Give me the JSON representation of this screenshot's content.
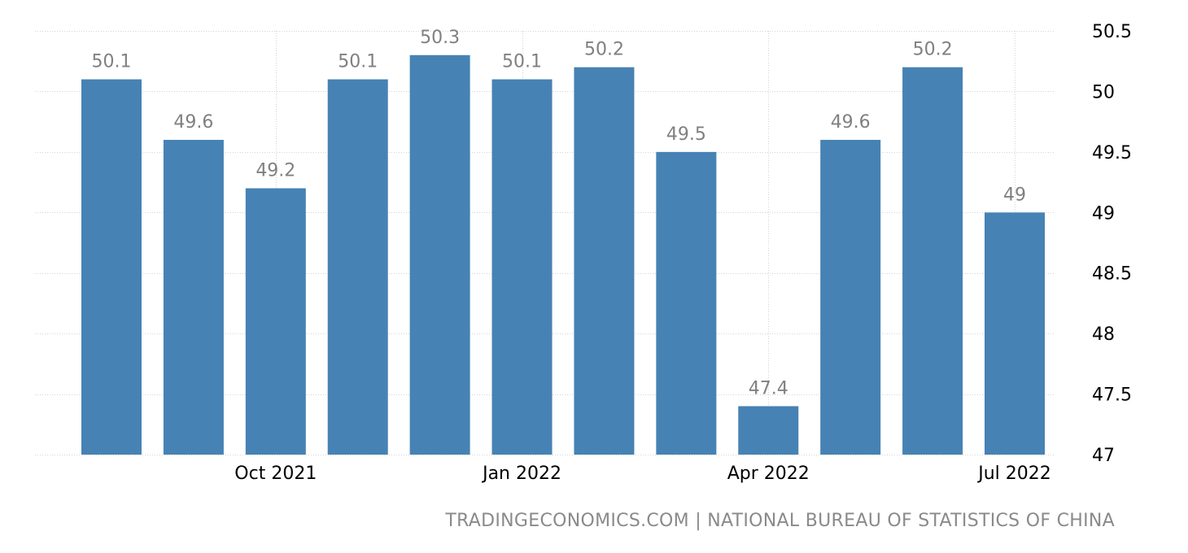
{
  "chart_data": {
    "type": "bar",
    "categories": [
      "Aug 2021",
      "Sep 2021",
      "Oct 2021",
      "Nov 2021",
      "Dec 2021",
      "Jan 2022",
      "Feb 2022",
      "Mar 2022",
      "Apr 2022",
      "May 2022",
      "Jun 2022",
      "Jul 2022"
    ],
    "values": [
      50.1,
      49.6,
      49.2,
      50.1,
      50.3,
      50.1,
      50.2,
      49.5,
      47.4,
      49.6,
      50.2,
      49.0
    ],
    "value_labels": [
      "50.1",
      "49.6",
      "49.2",
      "50.1",
      "50.3",
      "50.1",
      "50.2",
      "49.5",
      "47.4",
      "49.6",
      "50.2",
      "49"
    ],
    "x_tick_labels": [
      {
        "category": "Oct 2021",
        "label": "Oct 2021"
      },
      {
        "category": "Jan 2022",
        "label": "Jan 2022"
      },
      {
        "category": "Apr 2022",
        "label": "Apr 2022"
      },
      {
        "category": "Jul 2022",
        "label": "Jul 2022"
      }
    ],
    "y_ticks": [
      47,
      47.5,
      48,
      48.5,
      49,
      49.5,
      50,
      50.5
    ],
    "y_tick_labels": [
      "47",
      "47.5",
      "48",
      "48.5",
      "49",
      "49.5",
      "50",
      "50.5"
    ],
    "ylim": [
      47,
      50.5
    ],
    "yaxis_position": "right",
    "grid": true,
    "legend": false,
    "title": "",
    "xlabel": "",
    "ylabel": ""
  },
  "colors": {
    "bar": "#4682b4",
    "value_label": "#808080",
    "tick_label": "#000000",
    "grid": "#d4d4d4",
    "source": "#8a8a8a"
  },
  "footer": {
    "source_text": "TRADINGECONOMICS.COM | NATIONAL BUREAU OF STATISTICS OF CHINA"
  }
}
